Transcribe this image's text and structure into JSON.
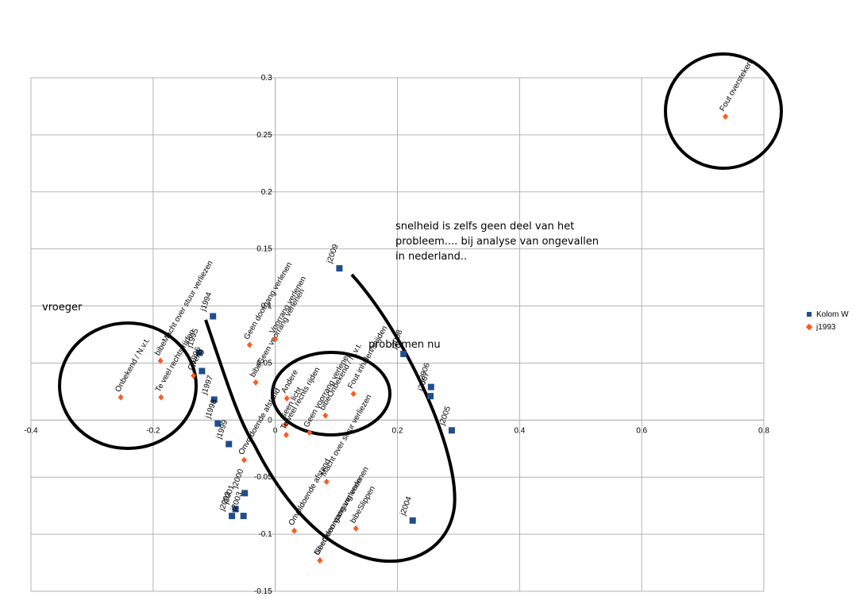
{
  "chart_data": {
    "type": "scatter",
    "xlim": [
      -0.4,
      0.8
    ],
    "ylim": [
      -0.15,
      0.3
    ],
    "x_ticks": [
      "-0.4",
      "-0.2",
      "0",
      "0.2",
      "0.4",
      "0.6",
      "0.8"
    ],
    "y_ticks": [
      "0.3",
      "0.25",
      "0.2",
      "0.15",
      "0.1",
      "0.05",
      "0",
      "-0.05",
      "-0.1",
      "-0.15"
    ],
    "grid": true,
    "legend_position": "right",
    "series": [
      {
        "name": "Kolom W",
        "color": "#1f4e8c",
        "marker": "square",
        "points": [
          {
            "label": "j1994",
            "x": -0.102,
            "y": 0.091
          },
          {
            "label": "j1995",
            "x": -0.124,
            "y": 0.059
          },
          {
            "label": "j1996",
            "x": -0.12,
            "y": 0.043
          },
          {
            "label": "j1997",
            "x": -0.1,
            "y": 0.018
          },
          {
            "label": "j1998",
            "x": -0.094,
            "y": -0.003
          },
          {
            "label": "j1999",
            "x": -0.076,
            "y": -0.021
          },
          {
            "label": "j2000",
            "x": -0.05,
            "y": -0.064
          },
          {
            "label": "j2001",
            "x": -0.065,
            "y": -0.078
          },
          {
            "label": "j2002",
            "x": -0.071,
            "y": -0.084
          },
          {
            "label": "j2003",
            "x": -0.052,
            "y": -0.084
          },
          {
            "label": "j2004",
            "x": 0.225,
            "y": -0.088
          },
          {
            "label": "j2005",
            "x": 0.289,
            "y": -0.009
          },
          {
            "label": "j2006",
            "x": 0.255,
            "y": 0.029
          },
          {
            "label": "j2007",
            "x": 0.254,
            "y": 0.021
          },
          {
            "label": "j2008",
            "x": 0.21,
            "y": 0.058
          },
          {
            "label": "j2009",
            "x": 0.105,
            "y": 0.133
          }
        ]
      },
      {
        "name": "j1993",
        "color": "#ff5a1f",
        "marker": "diamond",
        "points": [
          {
            "label": "Onbekend / N.v.t.",
            "x": -0.253,
            "y": 0.02
          },
          {
            "label": "Te veel rechts rijden",
            "x": -0.187,
            "y": 0.02
          },
          {
            "label": "bibeMacht over stuur verliezen",
            "x": -0.188,
            "y": 0.052
          },
          {
            "label": "Overig",
            "x": -0.134,
            "y": 0.039
          },
          {
            "label": "Geen doorgang verlenen",
            "x": -0.042,
            "y": 0.066
          },
          {
            "label": "bibeGeen voorrang verlenen",
            "x": -0.032,
            "y": 0.033
          },
          {
            "label": "Onvoldoende afstand",
            "x": -0.051,
            "y": -0.035
          },
          {
            "label": "Voorrang verlenen",
            "x": 0.0,
            "y": 0.071
          },
          {
            "label": "Andere",
            "x": 0.019,
            "y": 0.019
          },
          {
            "label": "Geen licht",
            "x": 0.017,
            "y": -0.004
          },
          {
            "label": "Te veel rechts rijden",
            "x": 0.018,
            "y": -0.013
          },
          {
            "label": "bibeOnbekend / N.v.t.",
            "x": 0.082,
            "y": 0.004
          },
          {
            "label": "Geen voorrang verlenen",
            "x": 0.056,
            "y": -0.011
          },
          {
            "label": "Fout inhalen/snijden",
            "x": 0.128,
            "y": 0.023
          },
          {
            "label": "Macht over stuur verliezen",
            "x": 0.084,
            "y": -0.054
          },
          {
            "label": "Onvoldoende afstand",
            "x": 0.031,
            "y": -0.097
          },
          {
            "label": "Geen doorgang verlenen",
            "x": 0.073,
            "y": -0.123
          },
          {
            "label": "bibeGeen voorrang verlenen",
            "x": 0.073,
            "y": -0.123
          },
          {
            "label": "bibeSlippen",
            "x": 0.132,
            "y": -0.095
          },
          {
            "label": "Fout oversteken",
            "x": 0.737,
            "y": 0.266
          }
        ]
      }
    ]
  },
  "annotations": {
    "vroeger": "vroeger",
    "snelheid_line1": "snelheid is zelfs geen deel van het",
    "snelheid_line2": "probleem.... bij analyse van ongevallen",
    "snelheid_line3": "in nederland..",
    "problemen_nu": "problemen nu"
  }
}
